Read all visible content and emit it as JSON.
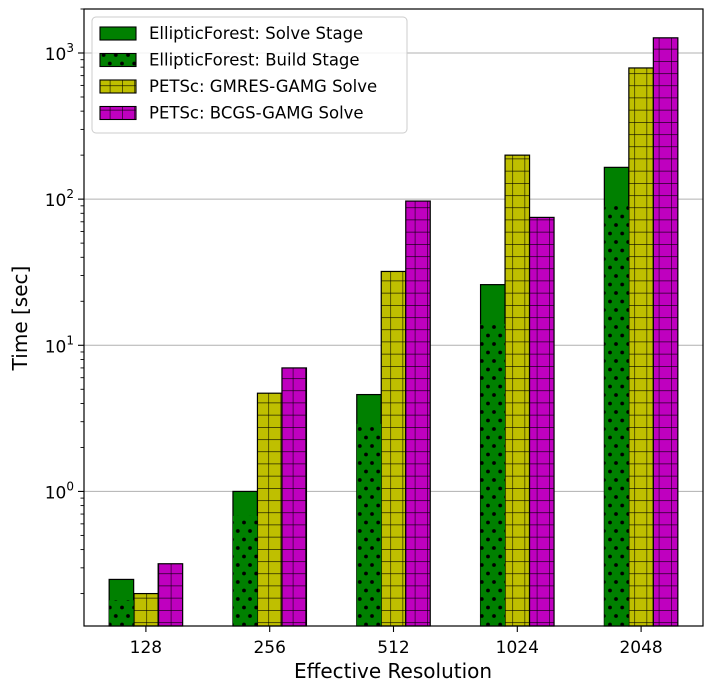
{
  "chart_data": {
    "type": "bar",
    "xlabel": "Effective Resolution",
    "ylabel": "Time [sec]",
    "yscale": "log",
    "ylim": [
      0.12,
      2000
    ],
    "grid": "y-major",
    "legend_position": "top-left",
    "categories": [
      "128",
      "256",
      "512",
      "1024",
      "2048"
    ],
    "series": [
      {
        "name": "EllipticForest: Solve Stage",
        "values": [
          0.25,
          1.0,
          4.6,
          26,
          165
        ],
        "color": "#008000",
        "hatch": "none",
        "position": 0,
        "layer": "back"
      },
      {
        "name": "EllipticForest: Build Stage",
        "values": [
          0.18,
          0.68,
          2.9,
          14,
          90
        ],
        "color": "#008000",
        "hatch": "dots",
        "position": 0,
        "layer": "front"
      },
      {
        "name": "PETSc: GMRES-GAMG Solve",
        "values": [
          0.2,
          4.7,
          32,
          200,
          790
        ],
        "color": "#bfbf00",
        "hatch": "grid",
        "position": 1,
        "layer": "back"
      },
      {
        "name": "PETSc: BCGS-GAMG Solve",
        "values": [
          0.32,
          7.0,
          97,
          75,
          1270
        ],
        "color": "#bf00bf",
        "hatch": "grid",
        "position": 2,
        "layer": "back"
      }
    ],
    "yticks": [
      {
        "value": 1,
        "base": "10",
        "exp": "0"
      },
      {
        "value": 10,
        "base": "10",
        "exp": "1"
      },
      {
        "value": 100,
        "base": "10",
        "exp": "2"
      },
      {
        "value": 1000,
        "base": "10",
        "exp": "3"
      }
    ]
  }
}
